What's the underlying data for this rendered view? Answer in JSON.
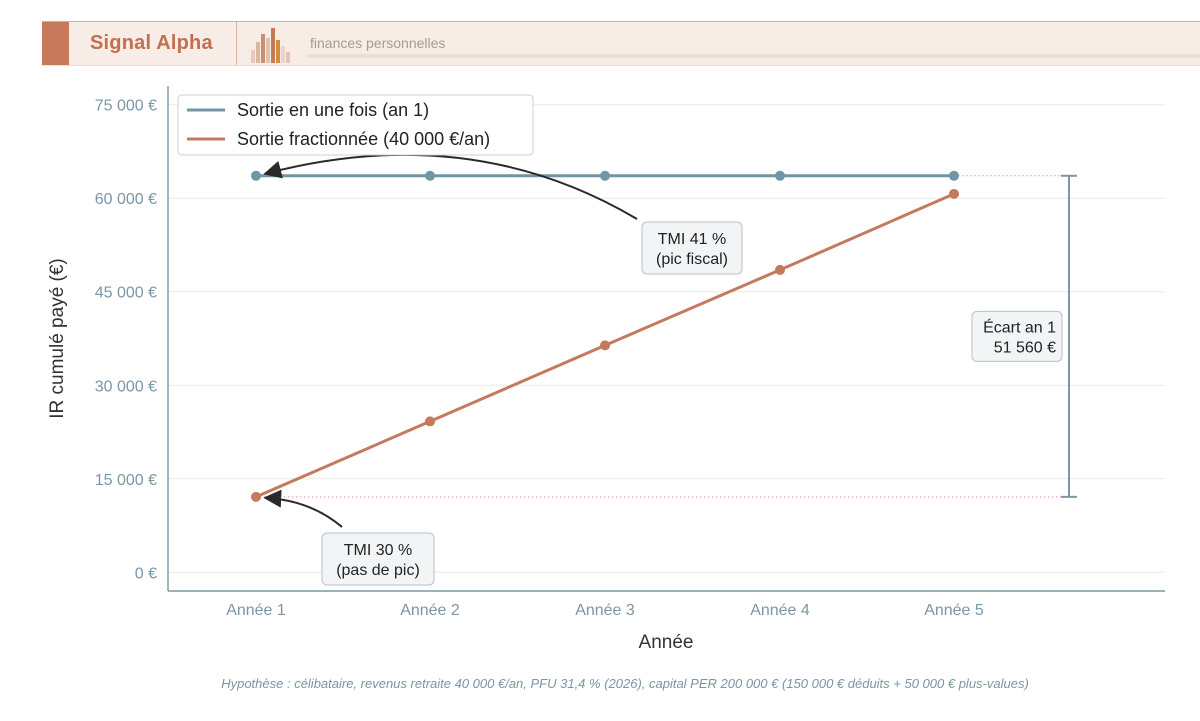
{
  "header": {
    "brand": "Signal Alpha",
    "tagline": "finances personnelles"
  },
  "colors": {
    "brand": "#c2704f",
    "series_lump": "#6f96a4",
    "series_fractional": "#c47a5e",
    "axis": "#7c96a6"
  },
  "chart_data": {
    "type": "line",
    "xlabel": "Année",
    "ylabel": "IR cumulé payé (€)",
    "categories": [
      "Année 1",
      "Année 2",
      "Année 3",
      "Année 4",
      "Année 5"
    ],
    "ylim": [
      -3000,
      78000
    ],
    "yticks": [
      0,
      15000,
      30000,
      45000,
      60000,
      75000
    ],
    "ytick_labels": [
      "0 €",
      "15 000 €",
      "30 000 €",
      "45 000 €",
      "60 000 €",
      "75 000 €"
    ],
    "grid": "horizontal",
    "legend_position": "top-left",
    "series": [
      {
        "name": "Sortie en une fois (an 1)",
        "values": [
          63600,
          63600,
          63600,
          63600,
          63600
        ],
        "color": "#6f96a4"
      },
      {
        "name": "Sortie fractionnée (40 000 €/an)",
        "values": [
          12100,
          24200,
          36400,
          48500,
          60700
        ],
        "color": "#c47a5e"
      }
    ],
    "annotations": [
      {
        "lines": [
          "TMI 41 %",
          "(pic fiscal)"
        ],
        "points_to": {
          "series": 0,
          "index": 0
        }
      },
      {
        "lines": [
          "TMI 30 %",
          "(pas de pic)"
        ],
        "points_to": {
          "series": 1,
          "index": 0
        }
      }
    ],
    "gap": {
      "lines": [
        "Écart an 1",
        "51 560 €"
      ],
      "from": 12100,
      "to": 63600
    }
  },
  "footnote": "Hypothèse : célibataire, revenus retraite 40 000 €/an, PFU 31,4 % (2026), capital PER 200 000 € (150 000 € déduits + 50 000 € plus-values)"
}
